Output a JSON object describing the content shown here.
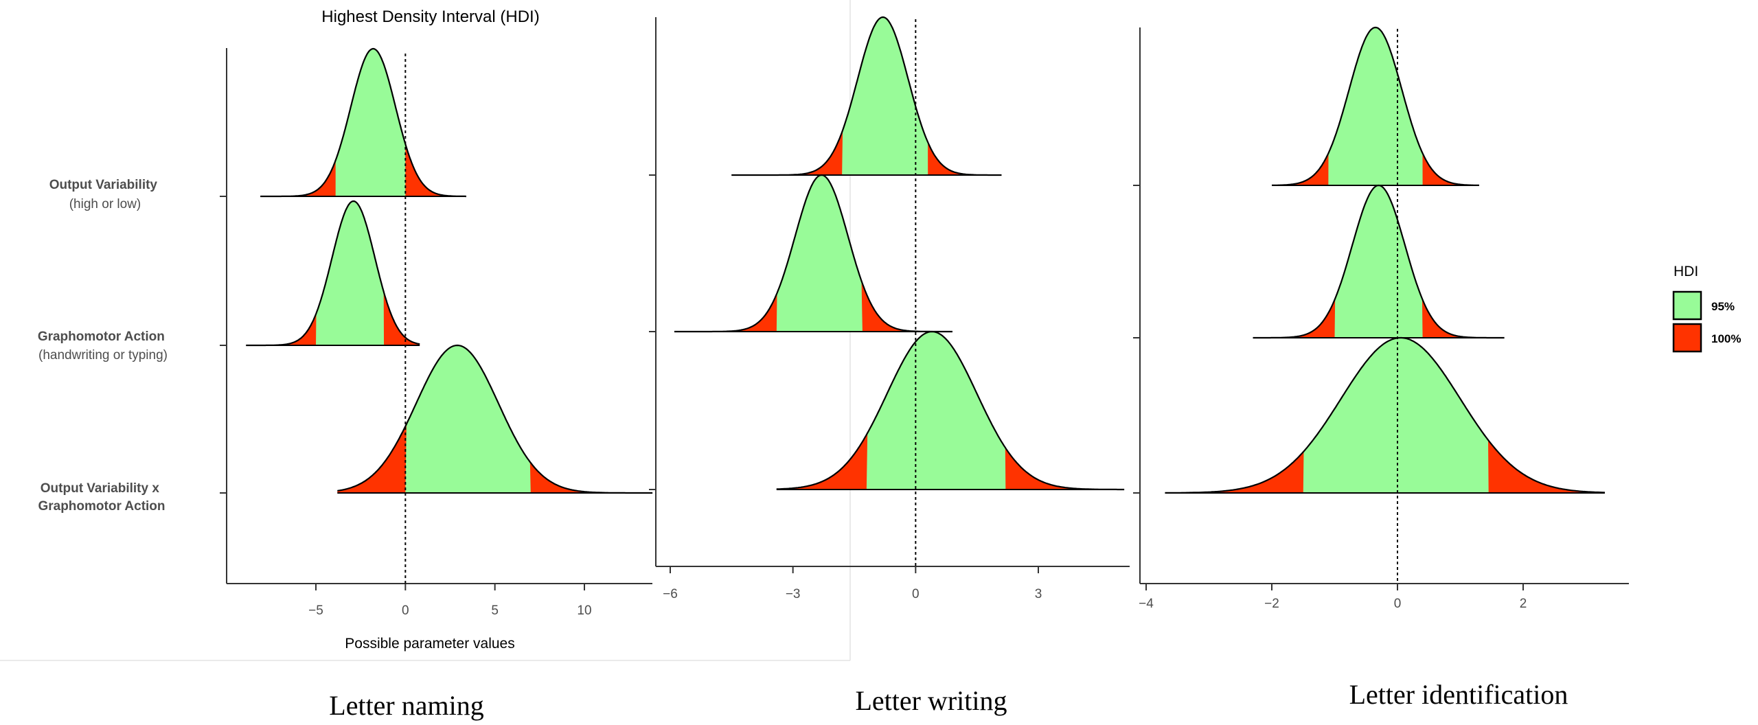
{
  "figure": {
    "title": "Highest Density Interval (HDI)",
    "x_axis_label": "Possible parameter values",
    "legend": {
      "title": "HDI",
      "items": [
        {
          "label": "95%",
          "color": "#98fb98"
        },
        {
          "label": "100%",
          "color": "#ff3300"
        }
      ]
    },
    "colors": {
      "hdi95": "#98fb98",
      "hdi100": "#ff3300",
      "outline": "#000000"
    }
  },
  "chart_data": [
    {
      "type": "area",
      "caption": "Letter naming",
      "y_categories": [
        "Output Variability (high or low)",
        "Graphomotor Action (handwriting or typing)",
        "Output Variability x Graphomotor Action"
      ],
      "x_ticks": [
        -5,
        0,
        5,
        10
      ],
      "xlim": [
        -10,
        13.8
      ],
      "reference_line_x": 0,
      "series": [
        {
          "category": "Output Variability (high or low)",
          "mode": -1.8,
          "sd": 1.25,
          "hdi95": [
            -3.9,
            0.0
          ],
          "range": [
            -8.1,
            3.4
          ]
        },
        {
          "category": "Graphomotor Action (handwriting or typing)",
          "mode": -2.9,
          "sd": 1.2,
          "hdi95": [
            -5.0,
            -1.2
          ],
          "range": [
            -8.9,
            0.8
          ]
        },
        {
          "category": "Output Variability x Graphomotor Action",
          "mode": 2.9,
          "sd": 2.3,
          "hdi95": [
            0.0,
            7.0
          ],
          "range": [
            -3.8,
            13.8
          ]
        }
      ]
    },
    {
      "type": "area",
      "caption": "Letter writing",
      "x_ticks": [
        -6,
        -3,
        0,
        3
      ],
      "xlim": [
        -6.4,
        5.1
      ],
      "reference_line_x": 0,
      "series": [
        {
          "category": "Output Variability (high or low)",
          "mode": -0.8,
          "sd": 0.62,
          "hdi95": [
            -1.8,
            0.3
          ],
          "range": [
            -4.5,
            2.1
          ]
        },
        {
          "category": "Graphomotor Action (handwriting or typing)",
          "mode": -2.3,
          "sd": 0.65,
          "hdi95": [
            -3.4,
            -1.3
          ],
          "range": [
            -5.9,
            0.9
          ]
        },
        {
          "category": "Output Variability x Graphomotor Action",
          "mode": 0.4,
          "sd": 1.1,
          "hdi95": [
            -1.2,
            2.2
          ],
          "range": [
            -3.4,
            5.1
          ]
        }
      ]
    },
    {
      "type": "area",
      "caption": "Letter identification",
      "x_ticks": [
        -4,
        -2,
        0,
        2
      ],
      "xlim": [
        -4.1,
        3.7
      ],
      "reference_line_x": 0,
      "series": [
        {
          "category": "Output Variability (high or low)",
          "mode": -0.35,
          "sd": 0.42,
          "hdi95": [
            -1.1,
            0.4
          ],
          "range": [
            -2.0,
            1.3
          ]
        },
        {
          "category": "Graphomotor Action (handwriting or typing)",
          "mode": -0.3,
          "sd": 0.42,
          "hdi95": [
            -1.0,
            0.4
          ],
          "range": [
            -2.3,
            1.7
          ]
        },
        {
          "category": "Output Variability x Graphomotor Action",
          "mode": 0.05,
          "sd": 0.95,
          "hdi95": [
            -1.5,
            1.45
          ],
          "range": [
            -3.7,
            3.3
          ]
        }
      ]
    }
  ]
}
